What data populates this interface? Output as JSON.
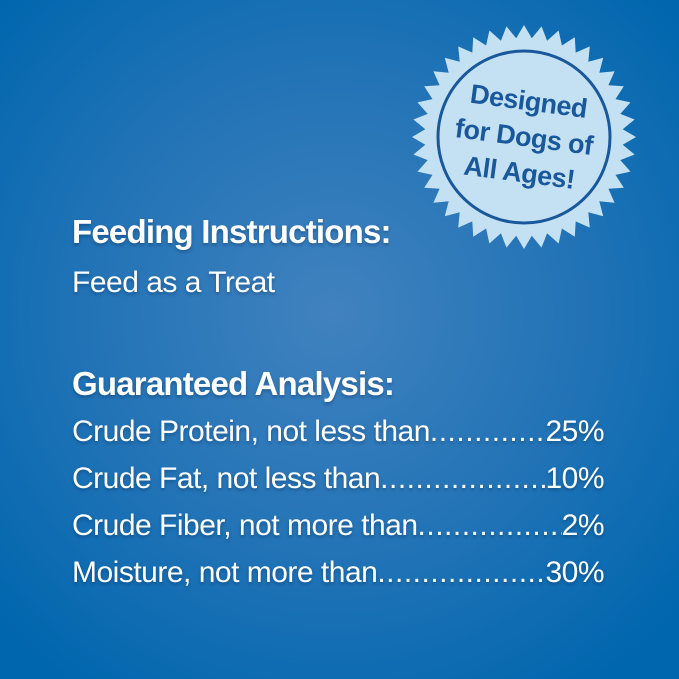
{
  "badge": {
    "lines": [
      "Designed",
      "for Dogs of",
      "All Ages!"
    ]
  },
  "feeding": {
    "heading": "Feeding Instructions:",
    "body": "Feed as a Treat"
  },
  "analysis": {
    "heading": "Guaranteed Analysis:",
    "rows": [
      {
        "label": "Crude Protein, not less than",
        "value": "25%"
      },
      {
        "label": "Crude Fat, not less than",
        "value": "10%"
      },
      {
        "label": "Crude Fiber, not more than",
        "value": "2%"
      },
      {
        "label": "Moisture, not more than",
        "value": "30%"
      }
    ]
  },
  "colors": {
    "bg_edge": "#0066ae",
    "bg_mid": "#2173b6",
    "bg_center": "#4182bf",
    "badge_fill": "#c3e1f3",
    "badge_ink": "#1a589c",
    "text_white": "#ffffff"
  }
}
